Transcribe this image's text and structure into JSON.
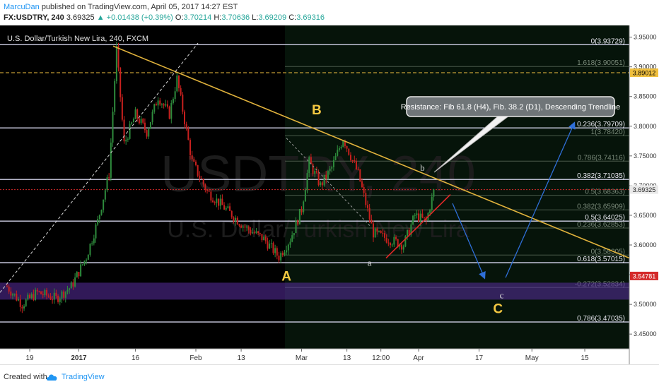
{
  "header": {
    "author": "MarcuDan",
    "published_text": "published on TradingView.com, April 05, 2017 14:27 EST",
    "symbol": "FX:USDTRY, 240",
    "last_price": "3.69325",
    "change": "+0.01438 (+0.39%)",
    "open_label": "O:",
    "open_value": "3.70214",
    "high_label": "H:",
    "high_value": "3.70636",
    "low_label": "L:",
    "low_value": "3.69209",
    "close_label": "C:",
    "close_value": "3.69316"
  },
  "chart_title": "U.S. Dollar/Turkish New Lira, 240, FXCM",
  "watermark": {
    "symbol": "USDTRY, 240",
    "name": "U.S. Dollar/Turkish New Lira"
  },
  "footer": {
    "created_label": "Created with",
    "brand": "TradingView"
  },
  "colors": {
    "background": "#ffffff",
    "plot_background": "#000000",
    "up_candle": "#2e8b3c",
    "down_candle": "#c8201e",
    "trendline": "#e0b23c",
    "fib_line": "#d0d0e0",
    "wave_label": "#f5c842",
    "arrow": "#2f6fd8",
    "support_line": "#e02828",
    "highlight_band": "#5a2ea0",
    "current_price": "#d42a2a",
    "marked_level": "#f0c040"
  },
  "chart_data": {
    "type": "candlestick",
    "price_scale": {
      "min": 3.43,
      "max": 3.965,
      "ticks": [
        "3.95000",
        "3.90000",
        "3.85000",
        "3.80000",
        "3.75000",
        "3.70000",
        "3.65000",
        "3.60000",
        "3.55000",
        "3.50000",
        "3.45000"
      ]
    },
    "time_axis": {
      "labels": [
        "19",
        "2017",
        "16",
        "Feb",
        "13",
        "Mar",
        "13",
        "12:00",
        "Apr",
        "17",
        "May",
        "15"
      ]
    },
    "price_path": [
      [
        "2016-12-13",
        3.53
      ],
      [
        "2016-12-17",
        3.5
      ],
      [
        "2016-12-21",
        3.52
      ],
      [
        "2016-12-26",
        3.51
      ],
      [
        "2016-12-30",
        3.53
      ],
      [
        "2017-01-03",
        3.58
      ],
      [
        "2017-01-06",
        3.64
      ],
      [
        "2017-01-09",
        3.72
      ],
      [
        "2017-01-11",
        3.93
      ],
      [
        "2017-01-13",
        3.77
      ],
      [
        "2017-01-16",
        3.82
      ],
      [
        "2017-01-19",
        3.79
      ],
      [
        "2017-01-22",
        3.85
      ],
      [
        "2017-01-25",
        3.82
      ],
      [
        "2017-01-27",
        3.88
      ],
      [
        "2017-01-31",
        3.74
      ],
      [
        "2017-02-04",
        3.69
      ],
      [
        "2017-02-09",
        3.66
      ],
      [
        "2017-02-14",
        3.63
      ],
      [
        "2017-02-19",
        3.61
      ],
      [
        "2017-02-23",
        3.58
      ],
      [
        "2017-02-26",
        3.61
      ],
      [
        "2017-03-01",
        3.66
      ],
      [
        "2017-03-03",
        3.74
      ],
      [
        "2017-03-06",
        3.7
      ],
      [
        "2017-03-09",
        3.73
      ],
      [
        "2017-03-12",
        3.78
      ],
      [
        "2017-03-16",
        3.72
      ],
      [
        "2017-03-20",
        3.62
      ],
      [
        "2017-03-24",
        3.61
      ],
      [
        "2017-03-28",
        3.6
      ],
      [
        "2017-03-31",
        3.65
      ],
      [
        "2017-04-03",
        3.64
      ],
      [
        "2017-04-05",
        3.69
      ]
    ],
    "last_price": 3.69325,
    "fib_levels": [
      {
        "label": "0(3.93729)",
        "price": 3.93729,
        "style": "bright"
      },
      {
        "label": "1.618(3.90051)",
        "price": 3.90051,
        "style": "dim"
      },
      {
        "label": "0.236(3.79709)",
        "price": 3.79709,
        "style": "bright"
      },
      {
        "label": "1(3.78420)",
        "price": 3.7842,
        "style": "dim"
      },
      {
        "label": "0.786(3.74116)",
        "price": 3.74116,
        "style": "dim"
      },
      {
        "label": "0.382(3.71035)",
        "price": 3.71035,
        "style": "bright"
      },
      {
        "label": "0.5(3.68363)",
        "price": 3.68363,
        "style": "dim"
      },
      {
        "label": "0.382(3.65909)",
        "price": 3.65909,
        "style": "dim"
      },
      {
        "label": "0.5(3.64025)",
        "price": 3.64025,
        "style": "bright"
      },
      {
        "label": "0.236(3.62853)",
        "price": 3.62853,
        "style": "dim"
      },
      {
        "label": "0(3.58305)",
        "price": 3.58305,
        "style": "dim"
      },
      {
        "label": "0.618(3.57015)",
        "price": 3.57015,
        "style": "bright"
      },
      {
        "label": "-0.272(3.52834)",
        "price": 3.52834,
        "style": "dim"
      },
      {
        "label": "0.786(3.47035)",
        "price": 3.47035,
        "style": "bright"
      }
    ],
    "price_badges": [
      {
        "text": "3.89012",
        "price": 3.89012,
        "kind": "level"
      },
      {
        "text": "3.69325",
        "price": 3.69325,
        "kind": "last"
      },
      {
        "text": "3.54781",
        "price": 3.54781,
        "kind": "marker"
      }
    ],
    "wave_labels": [
      {
        "text": "A",
        "date": "2017-02-25",
        "price": 3.54,
        "style": "major"
      },
      {
        "text": "B",
        "date": "2017-03-05",
        "price": 3.82,
        "style": "major"
      },
      {
        "text": "C",
        "date": "2017-04-22",
        "price": 3.485,
        "style": "major"
      },
      {
        "text": "a",
        "date": "2017-03-19",
        "price": 3.565,
        "style": "minor"
      },
      {
        "text": "b",
        "date": "2017-04-02",
        "price": 3.725,
        "style": "minor"
      },
      {
        "text": "c",
        "date": "2017-04-23",
        "price": 3.51,
        "style": "minor"
      }
    ],
    "annotation": "Resistance: Fib 61.8 (H4), Fib. 38.2 (D1), Descending Trendline"
  }
}
